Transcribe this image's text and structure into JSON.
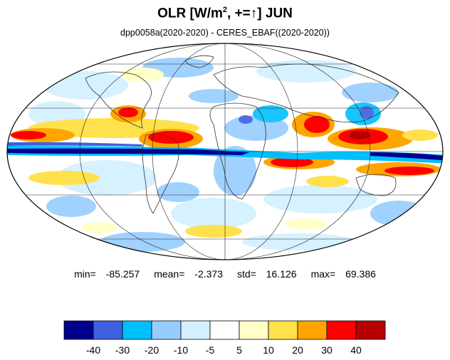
{
  "title": {
    "main": "OLR [W/m",
    "sup": "2",
    "rest": ", +=↑] JUN"
  },
  "subtitle": "dpp0058a(2020-2020) - CERES_EBAF((2020-2020))",
  "stats": {
    "min_label": "min=",
    "min_value": "-85.257",
    "mean_label": "mean=",
    "mean_value": "-2.373",
    "std_label": "std=",
    "std_value": "16.126",
    "max_label": "max=",
    "max_value": "69.386"
  },
  "colorbar": {
    "colors": [
      "#00008f",
      "#3e5fe0",
      "#00bfff",
      "#96cdff",
      "#d2f0ff",
      "#ffffff",
      "#ffffc8",
      "#ffe14b",
      "#ffa500",
      "#ff0000",
      "#b90000"
    ],
    "labels": [
      "-40",
      "-30",
      "-20",
      "-10",
      "-5",
      "5",
      "10",
      "20",
      "30",
      "40"
    ]
  }
}
